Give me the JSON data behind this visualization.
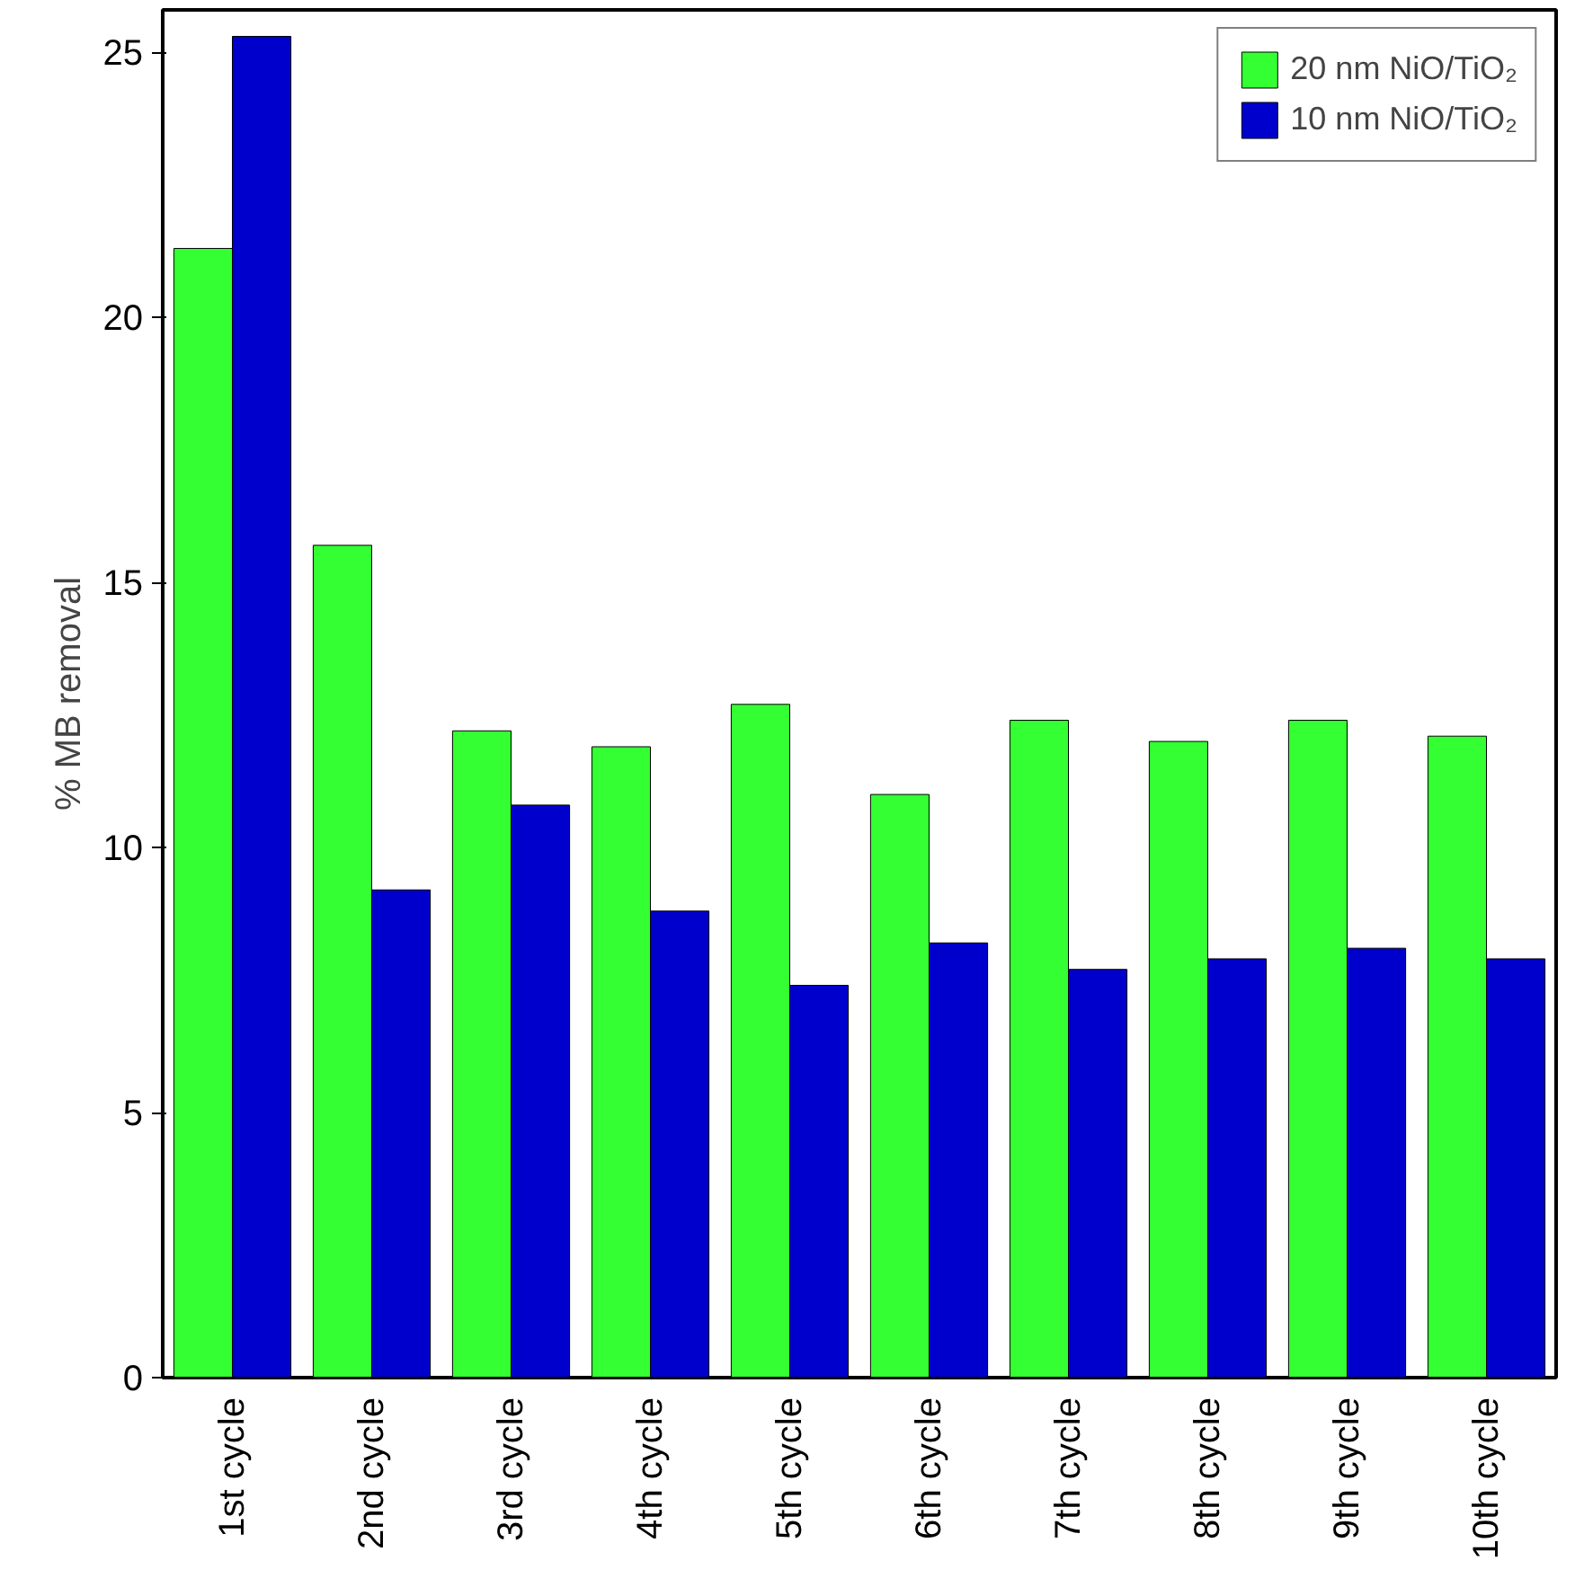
{
  "chart_data": {
    "type": "bar",
    "ylabel": "% MB removal",
    "categories": [
      "1st cycle",
      "2nd cycle",
      "3rd cycle",
      "4th cycle",
      "5th cycle",
      "6th cycle",
      "7th cycle",
      "8th cycle",
      "9th cycle",
      "10th cycle"
    ],
    "series": [
      {
        "name": "20 nm NiO/TiO₂",
        "color": "#33ff33",
        "values": [
          21.3,
          15.7,
          12.2,
          11.9,
          12.7,
          11.0,
          12.4,
          12.0,
          12.4,
          12.1
        ]
      },
      {
        "name": "10 nm NiO/TiO₂",
        "color": "#0000cc",
        "values": [
          25.3,
          9.2,
          10.8,
          8.8,
          7.4,
          8.2,
          7.7,
          7.9,
          8.1,
          7.9
        ]
      }
    ],
    "ylim": [
      0,
      25.8
    ],
    "yticks": [
      0,
      5,
      10,
      15,
      20,
      25
    ],
    "grid": false,
    "legend": "top right"
  }
}
